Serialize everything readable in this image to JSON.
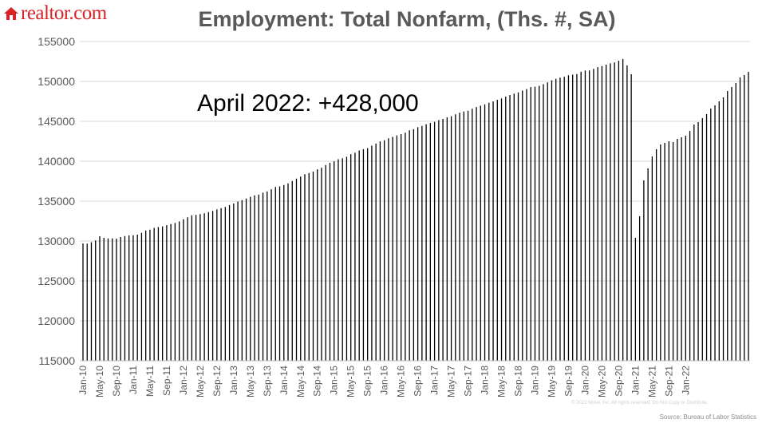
{
  "brand": {
    "name": "realtor.com",
    "logo_icon": "house-icon",
    "color": "#d92228"
  },
  "annotation": "April 2022: +428,000",
  "source": "Source: Bureau of Labor Statistics",
  "watermark": "© 2022 Move, Inc. All rights reserved. Do Not Copy or Distribute.",
  "chart_data": {
    "type": "bar",
    "title": "Employment: Total Nonfarm, (Ths. #, SA)",
    "xlabel": "",
    "ylabel": "",
    "ylim": [
      115000,
      155000
    ],
    "yticks": [
      115000,
      120000,
      125000,
      130000,
      135000,
      140000,
      145000,
      150000,
      155000
    ],
    "grid": true,
    "bar_color": "#000000",
    "x_start": "2010-01",
    "x_end": "2022-04",
    "tick_labels": [
      "Jan-10",
      "May-10",
      "Sep-10",
      "Jan-11",
      "May-11",
      "Sep-11",
      "Jan-12",
      "May-12",
      "Sep-12",
      "Jan-13",
      "May-13",
      "Sep-13",
      "Jan-14",
      "May-14",
      "Sep-14",
      "Jan-15",
      "May-15",
      "Sep-15",
      "Jan-16",
      "May-16",
      "Sep-16",
      "Jan-17",
      "May-17",
      "Sep-17",
      "Jan-18",
      "May-18",
      "Sep-18",
      "Jan-19",
      "May-19",
      "Sep-19",
      "Jan-20",
      "May-20",
      "Sep-20",
      "Jan-21",
      "May-21",
      "Sep-21",
      "Jan-22"
    ],
    "values": [
      129700,
      129680,
      129850,
      130080,
      130600,
      130400,
      130330,
      130340,
      130300,
      130500,
      130630,
      130700,
      130730,
      130800,
      131020,
      131320,
      131420,
      131650,
      131750,
      131840,
      131990,
      132120,
      132260,
      132460,
      132720,
      132980,
      133220,
      133280,
      133380,
      133480,
      133630,
      133770,
      133960,
      134130,
      134280,
      134510,
      134700,
      134950,
      135130,
      135330,
      135540,
      135730,
      135820,
      136060,
      136210,
      136490,
      136770,
      136850,
      137030,
      137220,
      137520,
      137820,
      138070,
      138370,
      138530,
      138700,
      138990,
      139190,
      139520,
      139800,
      139990,
      140250,
      140380,
      140560,
      140890,
      141060,
      141350,
      141510,
      141640,
      141950,
      142210,
      142490,
      142630,
      142870,
      143050,
      143240,
      143400,
      143570,
      143870,
      144010,
      144260,
      144420,
      144640,
      144800,
      144940,
      145150,
      145300,
      145500,
      145640,
      145880,
      146070,
      146240,
      146330,
      146570,
      146790,
      146960,
      147130,
      147330,
      147500,
      147700,
      147860,
      148100,
      148300,
      148480,
      148620,
      148850,
      149040,
      149290,
      149340,
      149450,
      149650,
      149880,
      150140,
      150320,
      150470,
      150590,
      150770,
      150850,
      150930,
      151210,
      151360,
      151370,
      151580,
      151790,
      151920,
      152100,
      152260,
      152380,
      152590,
      152810,
      152000,
      150900,
      130400,
      133100,
      137600,
      139100,
      140600,
      141500,
      142100,
      142300,
      142500,
      142400,
      142800,
      143000,
      143200,
      143800,
      144600,
      144900,
      145400,
      145900,
      146600,
      147000,
      147500,
      148000,
      148800,
      149300,
      149800,
      150500,
      150800,
      151200
    ]
  }
}
